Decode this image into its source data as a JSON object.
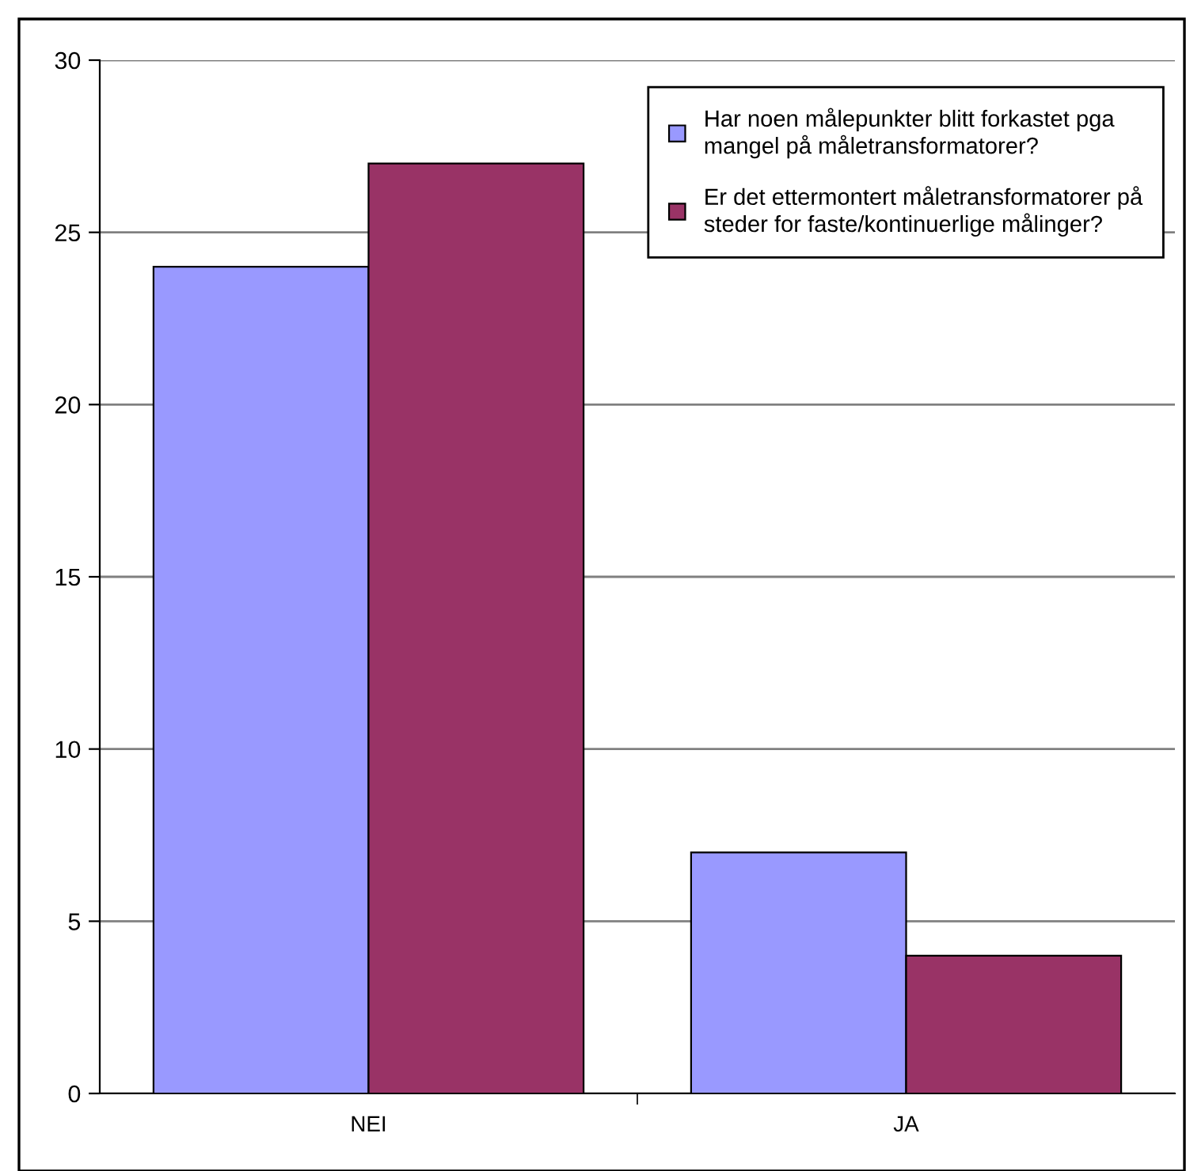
{
  "chart_data": {
    "type": "bar",
    "categories": [
      "NEI",
      "JA"
    ],
    "series": [
      {
        "name": "Har noen målepunkter blitt forkastet pga\nmangel på måletransformatorer?",
        "color": "#9999ff",
        "values": [
          24,
          7
        ]
      },
      {
        "name": "Er det ettermontert måletransformatorer på\nsteder for faste/kontinuerlige målinger?",
        "color": "#993366",
        "values": [
          27,
          4
        ]
      }
    ],
    "ylim": [
      0,
      30
    ],
    "yticks": [
      0,
      5,
      10,
      15,
      20,
      25,
      30
    ],
    "grid": "y",
    "legend": "top right"
  }
}
